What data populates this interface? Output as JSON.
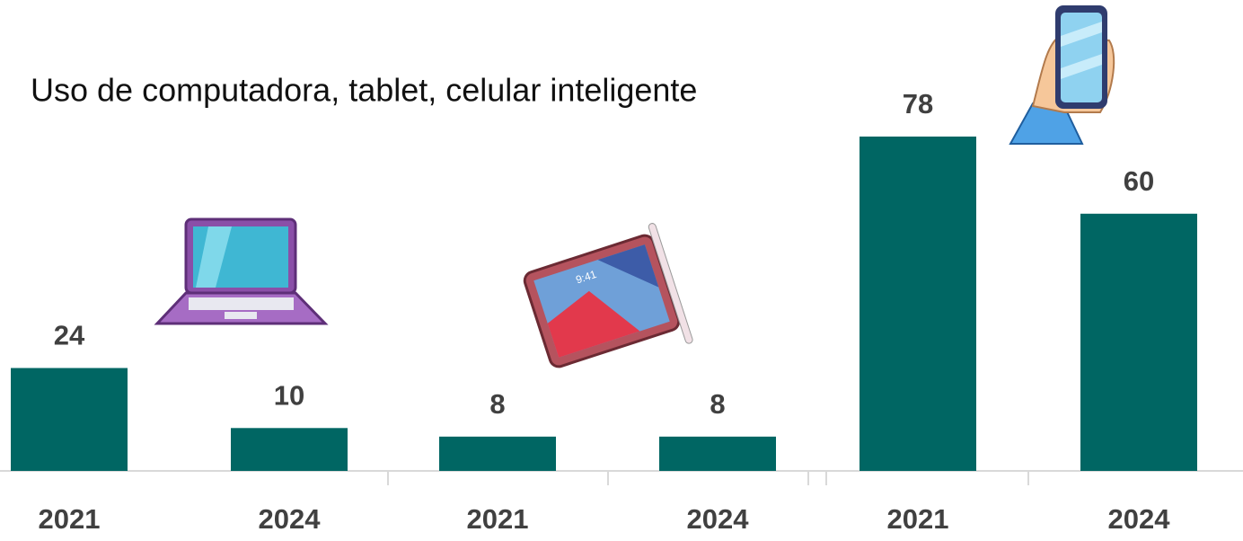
{
  "chart_data": {
    "type": "bar",
    "title": "Uso de computadora, tablet, celular inteligente",
    "categories": [
      "2021",
      "2024",
      "2021",
      "2024",
      "2021",
      "2024"
    ],
    "values": [
      24,
      10,
      8,
      8,
      78,
      60
    ],
    "color": "#006663",
    "ylim": [
      0,
      100
    ]
  }
}
